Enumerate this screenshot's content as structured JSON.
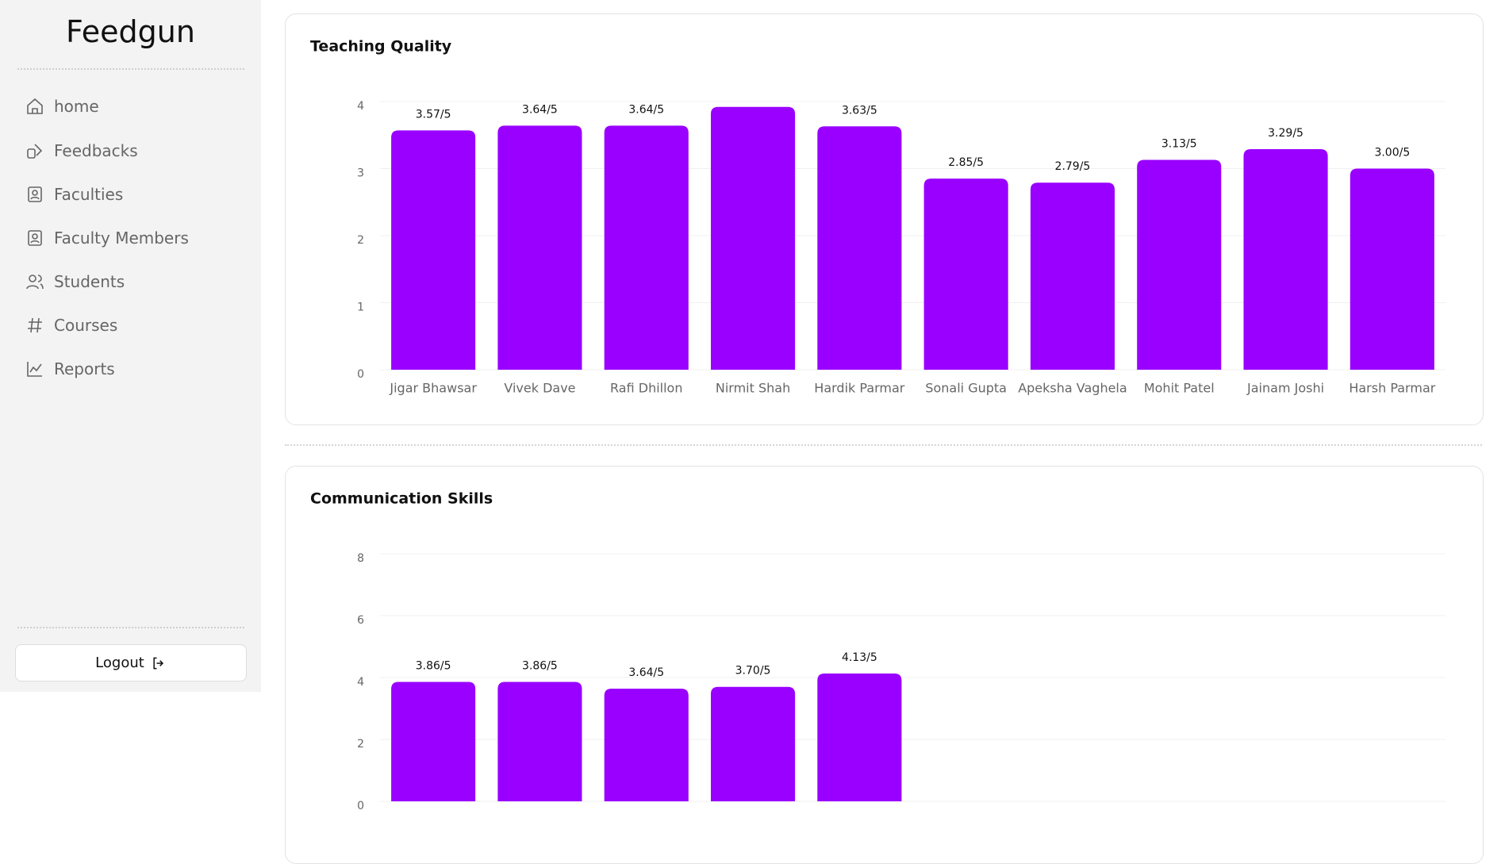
{
  "sidebar": {
    "brand": "Feedgun",
    "nav": [
      "home",
      "Feedbacks",
      "Faculties",
      "Faculty Members",
      "Students",
      "Courses",
      "Reports"
    ],
    "logout": "Logout"
  },
  "chart_data": [
    {
      "type": "bar",
      "title": "Teaching Quality",
      "categories": [
        "Jigar Bhawsar",
        "Vivek Dave",
        "Rafi Dhillon",
        "Nirmit Shah",
        "Hardik Parmar",
        "Sonali Gupta",
        "Apeksha Vaghela",
        "Mohit Patel",
        "Jainam Joshi",
        "Harsh Parmar"
      ],
      "values": [
        3.57,
        3.64,
        3.64,
        3.92,
        3.63,
        2.85,
        2.79,
        3.13,
        3.29,
        3.0
      ],
      "value_labels": [
        "3.57/5",
        "3.64/5",
        "3.64/5",
        null,
        "3.63/5",
        "2.85/5",
        "2.79/5",
        "3.13/5",
        "3.29/5",
        "3.00/5"
      ],
      "color": "#9900ff",
      "ylim": [
        0,
        4
      ],
      "yticks": [
        0,
        1,
        2,
        3,
        4
      ],
      "grid": true
    },
    {
      "type": "bar",
      "title": "Communication Skills",
      "categories": [
        null,
        null,
        null,
        null,
        null,
        null,
        null,
        null,
        null,
        null
      ],
      "values": [
        3.86,
        3.86,
        3.64,
        3.7,
        4.13,
        null,
        null,
        null,
        null,
        null
      ],
      "value_labels": [
        "3.86/5",
        "3.86/5",
        "3.64/5",
        "3.70/5",
        "4.13/5",
        null,
        null,
        null,
        null,
        null
      ],
      "color": "#9900ff",
      "ylim": [
        0,
        8
      ],
      "yticks": [
        0,
        2,
        4,
        6,
        8
      ],
      "grid": true
    }
  ]
}
